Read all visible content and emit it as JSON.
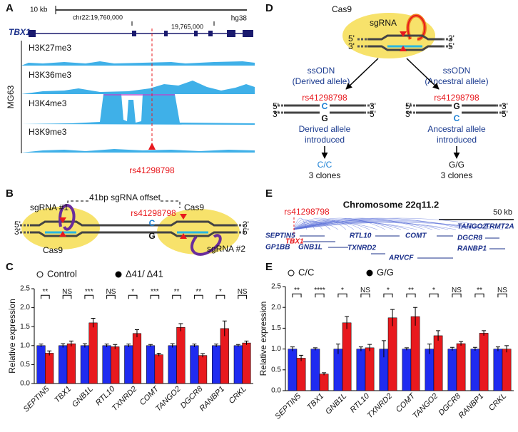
{
  "panels": {
    "A": {
      "label": "A",
      "scale": "10 kb",
      "assembly": "hg38",
      "gene": "TBX1",
      "coord1": "chr22:19,760,000",
      "coord2": "19,765,000",
      "sample": "MG63",
      "tracks": [
        "H3K27me3",
        "H3K36me3",
        "H3K4me3",
        "H3K9me3"
      ],
      "snp": "rs41298798"
    },
    "B": {
      "label": "B",
      "offset": "41bp sgRNA offset",
      "sgrna1": "sgRNA #1",
      "sgrna2": "sgRNA #2",
      "cas9": "Cas9",
      "snp": "rs41298798",
      "derived": "C",
      "ancestral": "G",
      "end5": "5'",
      "end3": "3'"
    },
    "D": {
      "label": "D",
      "cas9": "Cas9",
      "sgrna": "sgRNA",
      "end5": "5'",
      "end3": "3'",
      "ssodn": "ssODN",
      "left_allele": "(Derived allele)",
      "right_allele": "(Ancestral allele)",
      "snp": "rs41298798",
      "c": "C",
      "g": "G",
      "left_result": [
        "Derived allele",
        "introduced"
      ],
      "right_result": [
        "Ancestral allele",
        "introduced"
      ],
      "left_genotype": "C/C",
      "right_genotype": "G/G",
      "clones": "3 clones"
    },
    "E": {
      "label": "E",
      "title": "Chromosome 22q11.2",
      "scale": "50 kb",
      "snp": "rs41298798",
      "genes": [
        "SEPTIN5",
        "TBX1",
        "GP1BB",
        "GNB1L",
        "RTL10",
        "TXNRD2",
        "COMT",
        "ARVCF",
        "TANGO2",
        "TRMT2A",
        "DGCR8",
        "RANBP1"
      ]
    }
  },
  "chart_data": [
    {
      "type": "bar",
      "label": "C",
      "ylabel": "Relative expression",
      "categories": [
        "SEPTIN5",
        "TBX1",
        "GNB1L",
        "RTL10",
        "TXNRD2",
        "COMT",
        "TANGO2",
        "DGCR8",
        "RANBP1",
        "CRKL"
      ],
      "series": [
        {
          "name": "Control",
          "color": "#1f2bf0",
          "values": [
            1.0,
            1.0,
            1.0,
            1.0,
            1.0,
            1.0,
            1.0,
            1.0,
            1.0,
            1.0
          ],
          "errors": [
            0.04,
            0.05,
            0.05,
            0.04,
            0.04,
            0.03,
            0.05,
            0.04,
            0.04,
            0.03
          ]
        },
        {
          "name": "Δ41/ Δ41",
          "color": "#e8191e",
          "values": [
            0.8,
            1.05,
            1.6,
            0.97,
            1.32,
            0.76,
            1.48,
            0.74,
            1.45,
            1.07
          ],
          "errors": [
            0.06,
            0.07,
            0.12,
            0.06,
            0.1,
            0.04,
            0.1,
            0.05,
            0.2,
            0.05
          ]
        }
      ],
      "annotations": [
        "**",
        "NS",
        "***",
        "NS",
        "*",
        "***",
        "**",
        "**",
        "*",
        "NS"
      ],
      "ylim": [
        0,
        2.5
      ],
      "yticks": [
        {
          "value": 0,
          "label": "0.0"
        },
        {
          "value": 0.5,
          "label": "0.5"
        },
        {
          "value": 1,
          "label": "1.0"
        },
        {
          "value": 1.5,
          "label": "1.5"
        },
        {
          "value": 2,
          "label": "2.0"
        },
        {
          "value": 2.5,
          "label": "2.5"
        }
      ]
    },
    {
      "type": "bar",
      "label": "E",
      "ylabel": "Relative expression",
      "categories": [
        "SEPTIN5",
        "TBX1",
        "GNB1L",
        "RTL10",
        "TXNRD2",
        "COMT",
        "TANGO2",
        "DGCR8",
        "RANBP1",
        "CRKL"
      ],
      "series": [
        {
          "name": "C/C",
          "color": "#1f2bf0",
          "values": [
            1.0,
            1.0,
            1.0,
            1.0,
            1.0,
            1.0,
            1.0,
            1.0,
            1.0,
            1.0
          ],
          "errors": [
            0.05,
            0.03,
            0.12,
            0.05,
            0.2,
            0.03,
            0.12,
            0.04,
            0.04,
            0.05
          ]
        },
        {
          "name": "G/G",
          "color": "#e8191e",
          "values": [
            0.78,
            0.4,
            1.63,
            1.03,
            1.75,
            1.78,
            1.32,
            1.13,
            1.38,
            1.0
          ],
          "errors": [
            0.07,
            0.03,
            0.15,
            0.08,
            0.2,
            0.22,
            0.12,
            0.05,
            0.06,
            0.08
          ]
        }
      ],
      "annotations": [
        "**",
        "****",
        "*",
        "NS",
        "*",
        "**",
        "*",
        "NS",
        "**",
        "NS"
      ],
      "ylim": [
        0,
        2.5
      ],
      "yticks": [
        {
          "value": 0,
          "label": "0.0"
        },
        {
          "value": 0.5,
          "label": "0.5"
        },
        {
          "value": 1,
          "label": "1.0"
        },
        {
          "value": 1.5,
          "label": "1.5"
        },
        {
          "value": 2,
          "label": "2.0"
        },
        {
          "value": 2.5,
          "label": "2.5"
        }
      ]
    }
  ]
}
